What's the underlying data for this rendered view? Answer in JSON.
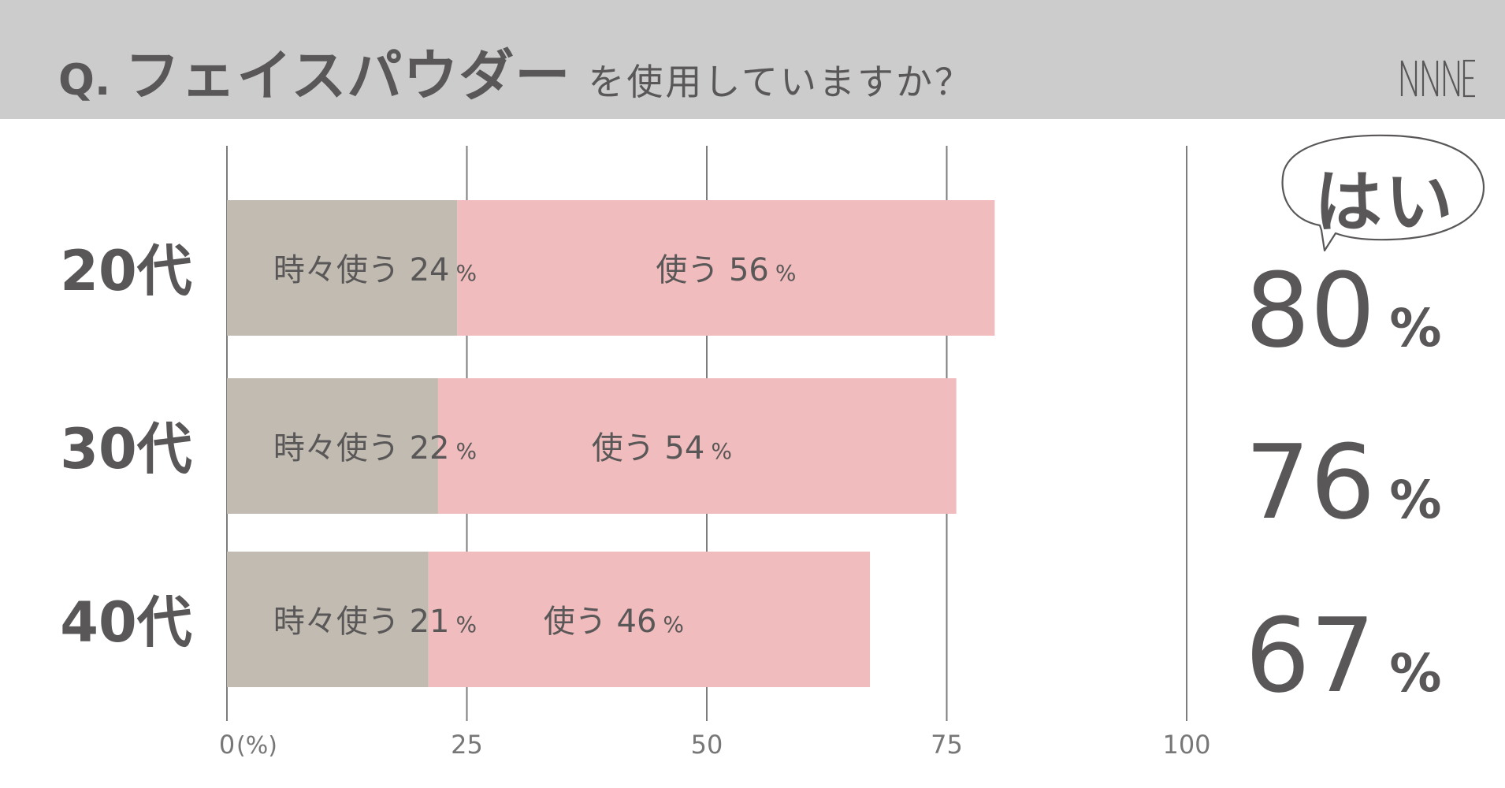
{
  "header": {
    "q_label": "Q.",
    "subject": "フェイスパウダー",
    "rest": "を使用していますか？",
    "logo_icon": "nine-logo-icon"
  },
  "colors": {
    "header_bg": "#cccccc",
    "sometimes": "#c1bbb1",
    "use": "#f1bcbd",
    "text": "#595757",
    "grid": "#7d7d7d"
  },
  "chart_data": {
    "type": "bar",
    "orientation": "horizontal",
    "stacked": true,
    "categories": [
      "20代",
      "30代",
      "40代"
    ],
    "series": [
      {
        "name": "時々使う",
        "values": [
          24,
          22,
          21
        ],
        "labels": [
          "時々使う 24",
          "時々使う 22",
          "時々使う 21"
        ]
      },
      {
        "name": "使う",
        "values": [
          56,
          54,
          46
        ],
        "labels": [
          "使う 56",
          "使う 54",
          "使う 46"
        ]
      }
    ],
    "value_unit": "%",
    "xlim": [
      0,
      100
    ],
    "x_ticks": [
      "0",
      "25",
      "50",
      "75",
      "100"
    ],
    "x_unit_label": "(%)",
    "grid": true,
    "totals": {
      "label": "はい",
      "values": [
        80,
        76,
        67
      ],
      "unit": "%"
    }
  }
}
